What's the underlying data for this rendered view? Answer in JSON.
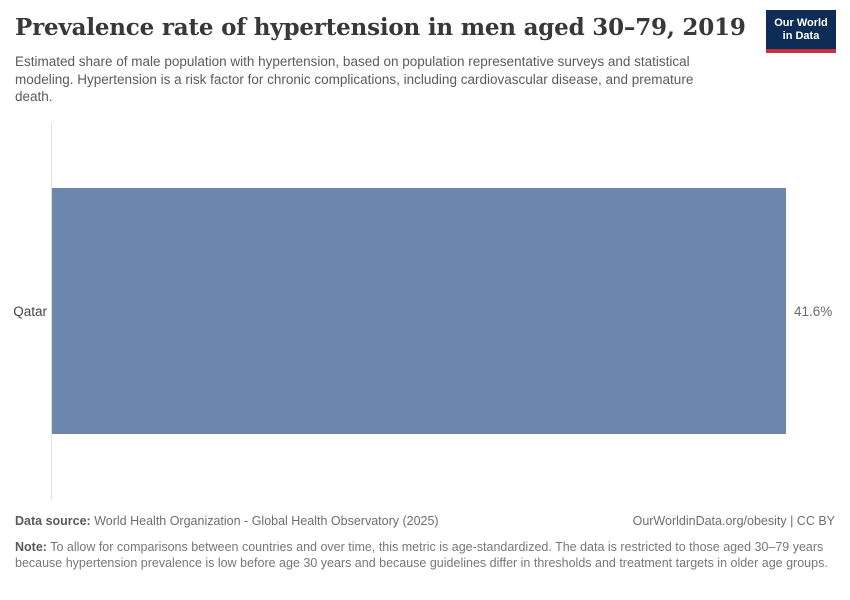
{
  "header": {
    "title": "Prevalence rate of hypertension in men aged 30–79, 2019",
    "subtitle": "Estimated share of male population with hypertension, based on population representative surveys and statistical modeling. Hypertension is a risk factor for chronic complications, including cardiovascular disease, and premature death."
  },
  "logo": {
    "line1": "Our World",
    "line2": "in Data",
    "bg_color": "#0d2d56",
    "accent_color": "#c5303a",
    "text_color": "#ffffff"
  },
  "chart_data": {
    "type": "bar",
    "orientation": "horizontal",
    "title": "Prevalence rate of hypertension in men aged 30–79, 2019",
    "categories": [
      "Qatar"
    ],
    "values": [
      41.6
    ],
    "value_labels": [
      "41.6%"
    ],
    "unit": "%",
    "xlim": [
      0,
      41.6
    ],
    "bar_color": "#6c86ae",
    "axis_color": "#e2e2e2",
    "grid": false,
    "legend": false
  },
  "footer": {
    "source_label": "Data source:",
    "source_text": "World Health Organization - Global Health Observatory (2025)",
    "attribution": "OurWorldinData.org/obesity | CC BY",
    "note_label": "Note:",
    "note_text": "To allow for comparisons between countries and over time, this metric is age-standardized. The data is restricted to those aged 30–79 years because hypertension prevalence is low before age 30 years and because guidelines differ in thresholds and treatment targets in older age groups."
  }
}
